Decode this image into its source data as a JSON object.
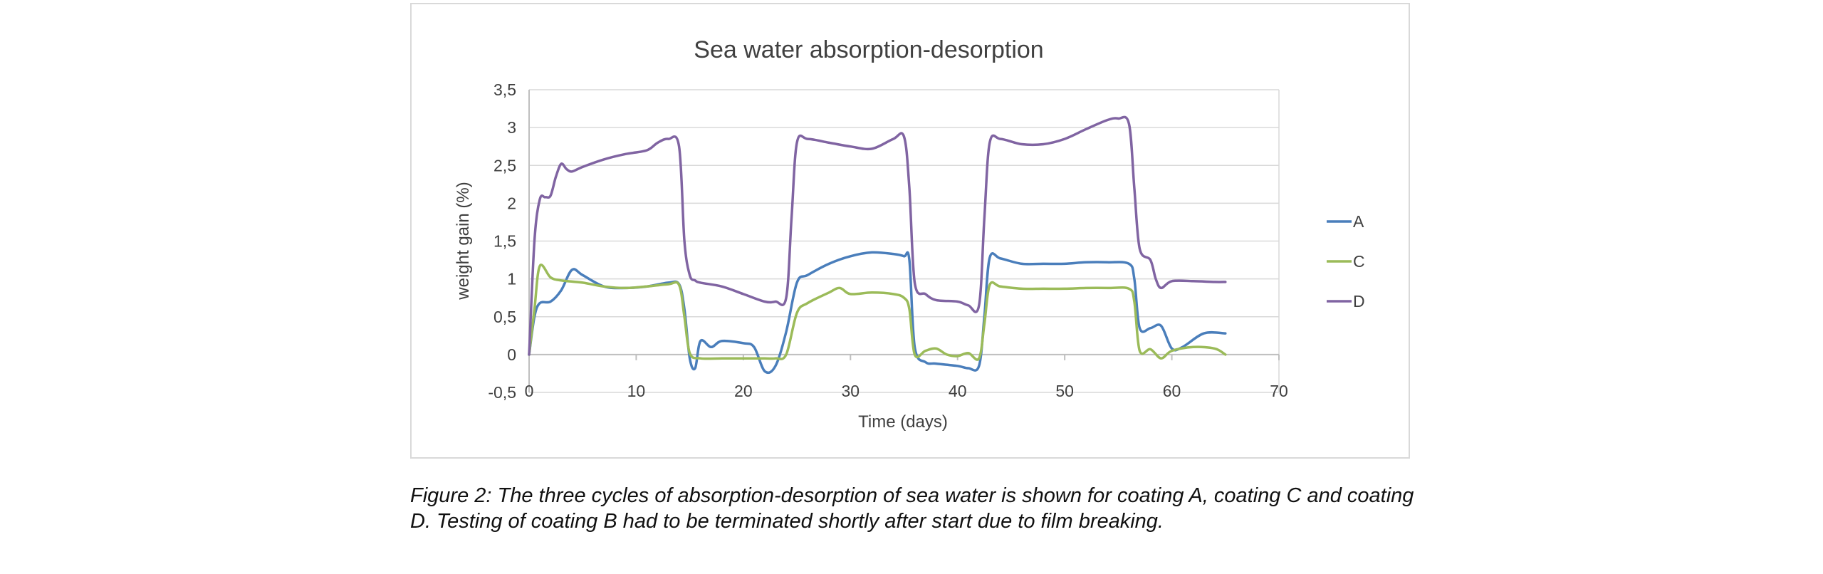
{
  "chart_data": {
    "type": "line",
    "title": "Sea water absorption-desorption",
    "xlabel": "Time (days)",
    "ylabel": "weight gain (%)",
    "xlim": [
      0,
      70
    ],
    "ylim": [
      -0.5,
      3.5
    ],
    "xticks": [
      0,
      10,
      20,
      30,
      40,
      50,
      60,
      70
    ],
    "xtick_labels": [
      "0",
      "10",
      "20",
      "30",
      "40",
      "50",
      "60",
      "70"
    ],
    "yticks": [
      -0.5,
      0,
      0.5,
      1,
      1.5,
      2,
      2.5,
      3,
      3.5
    ],
    "ytick_labels": [
      "-0,5",
      "0",
      "0,5",
      "1",
      "1,5",
      "2",
      "2,5",
      "3",
      "3,5"
    ],
    "grid": "horizontal",
    "legend_position": "right",
    "series": [
      {
        "name": "A",
        "color": "#4a7ebb",
        "x": [
          0,
          0.5,
          1,
          2,
          3,
          4,
          5,
          7,
          9,
          11,
          13,
          14,
          14.5,
          15,
          15.5,
          16,
          17,
          18,
          20,
          21,
          22,
          23,
          24,
          25,
          26,
          28,
          30,
          32,
          34,
          35,
          35.5,
          36,
          37,
          38,
          40,
          41,
          42,
          42.5,
          43,
          44,
          46,
          48,
          50,
          52,
          54,
          56,
          56.5,
          57,
          58,
          59,
          60,
          61,
          63,
          65
        ],
        "y": [
          0,
          0.5,
          0.68,
          0.7,
          0.85,
          1.12,
          1.05,
          0.9,
          0.88,
          0.9,
          0.95,
          0.93,
          0.6,
          -0.05,
          -0.18,
          0.18,
          0.1,
          0.18,
          0.15,
          0.1,
          -0.22,
          -0.15,
          0.3,
          0.95,
          1.05,
          1.2,
          1.3,
          1.35,
          1.33,
          1.3,
          1.25,
          0.1,
          -0.1,
          -0.12,
          -0.15,
          -0.18,
          -0.15,
          0.5,
          1.28,
          1.27,
          1.2,
          1.2,
          1.2,
          1.22,
          1.22,
          1.2,
          1.0,
          0.35,
          0.35,
          0.38,
          0.08,
          0.1,
          0.28,
          0.28
        ]
      },
      {
        "name": "C",
        "color": "#9bbb59",
        "x": [
          0,
          0.5,
          1,
          2,
          3,
          5,
          7,
          9,
          11,
          13,
          14,
          14.5,
          15,
          16,
          18,
          20,
          22,
          23,
          24,
          25,
          26,
          28,
          29,
          30,
          32,
          34,
          35,
          35.5,
          36,
          37,
          38,
          39,
          40,
          41,
          42,
          42.5,
          43,
          44,
          46,
          48,
          50,
          52,
          54,
          56,
          56.5,
          57,
          58,
          59,
          60,
          62,
          64,
          65
        ],
        "y": [
          0,
          0.6,
          1.17,
          1.02,
          0.98,
          0.95,
          0.9,
          0.88,
          0.9,
          0.93,
          0.92,
          0.5,
          0.02,
          -0.05,
          -0.05,
          -0.05,
          -0.05,
          -0.05,
          0.0,
          0.55,
          0.68,
          0.82,
          0.88,
          0.8,
          0.82,
          0.8,
          0.75,
          0.6,
          0.0,
          0.05,
          0.08,
          0.0,
          -0.02,
          0.02,
          -0.05,
          0.4,
          0.92,
          0.9,
          0.87,
          0.87,
          0.87,
          0.88,
          0.88,
          0.87,
          0.7,
          0.05,
          0.07,
          -0.05,
          0.05,
          0.1,
          0.08,
          0.0
        ]
      },
      {
        "name": "D",
        "color": "#8064a2",
        "x": [
          0,
          0.5,
          1,
          1.5,
          2,
          2.5,
          3,
          3.5,
          4,
          5,
          7,
          9,
          11,
          12,
          13,
          14,
          14.5,
          15,
          15.5,
          16,
          18,
          20,
          22,
          23,
          24,
          24.5,
          25,
          26,
          28,
          30,
          32,
          34,
          35,
          35.5,
          36,
          37,
          38,
          40,
          41,
          42,
          42.5,
          43,
          44,
          46,
          48,
          50,
          52,
          54,
          55,
          56,
          56.5,
          57,
          58,
          58.5,
          59,
          60,
          62,
          64,
          65
        ],
        "y": [
          0,
          1.5,
          2.05,
          2.08,
          2.1,
          2.35,
          2.52,
          2.45,
          2.42,
          2.48,
          2.58,
          2.65,
          2.7,
          2.8,
          2.85,
          2.75,
          1.5,
          1.05,
          0.98,
          0.95,
          0.9,
          0.8,
          0.7,
          0.7,
          0.75,
          1.8,
          2.8,
          2.85,
          2.8,
          2.75,
          2.72,
          2.85,
          2.88,
          2.2,
          0.95,
          0.8,
          0.72,
          0.7,
          0.65,
          0.65,
          1.8,
          2.8,
          2.85,
          2.78,
          2.78,
          2.85,
          2.98,
          3.1,
          3.12,
          3.05,
          2.2,
          1.4,
          1.25,
          1.0,
          0.88,
          0.97,
          0.97,
          0.96,
          0.96
        ]
      }
    ]
  },
  "caption": "Figure 2: The three cycles of absorption-desorption of sea water is shown for coating A, coating C and coating D. Testing of coating B had to be terminated shortly after start due to film breaking."
}
